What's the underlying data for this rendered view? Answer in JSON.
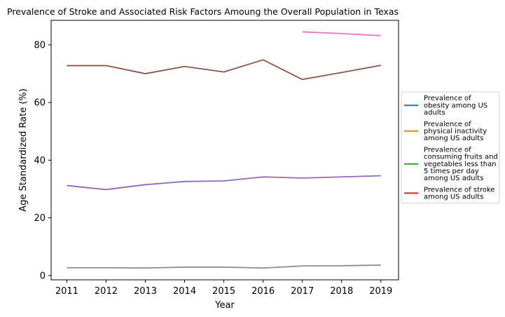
{
  "chart_data": {
    "type": "line",
    "title": "Prevalence of Stroke and Associated Risk Factors Amoung the Overall Population in Texas",
    "xlabel": "Year",
    "ylabel": "Age Standardized Rate (%)",
    "x": [
      2011,
      2012,
      2013,
      2014,
      2015,
      2016,
      2017,
      2018,
      2019
    ],
    "xlim": [
      2010.6,
      2019.45
    ],
    "ylim": [
      -1.5,
      88.5
    ],
    "yticks": [
      0,
      20,
      40,
      60,
      80
    ],
    "grid": false,
    "legend": {
      "placement": "center-right-outside",
      "entries": [
        {
          "label": "Prevalence of obesity among US adults",
          "color": "#1f77b4"
        },
        {
          "label": "Prevalence of physical inactivity among US adults",
          "color": "#ff7f0e"
        },
        {
          "label": "Prevalence of consuming fruits and vegetables less than 5 times per day among US adults",
          "color": "#2ca02c"
        },
        {
          "label": "Prevalence of stroke among US adults",
          "color": "#d62728"
        }
      ]
    },
    "series": [
      {
        "color": "#9467bd",
        "values": [
          31.2,
          29.8,
          31.5,
          32.6,
          32.8,
          34.2,
          33.8,
          34.2,
          34.6
        ]
      },
      {
        "color": "#8c564b",
        "values": [
          72.8,
          72.8,
          70.0,
          72.5,
          70.6,
          74.8,
          68.0,
          70.4,
          72.9
        ]
      },
      {
        "color": "#8c8c8c",
        "values": [
          2.7,
          2.7,
          2.6,
          2.9,
          2.9,
          2.6,
          3.3,
          3.4,
          3.6
        ]
      },
      {
        "color": "#e377c2",
        "values": [
          null,
          null,
          null,
          null,
          null,
          null,
          84.5,
          83.9,
          83.2
        ]
      }
    ]
  }
}
